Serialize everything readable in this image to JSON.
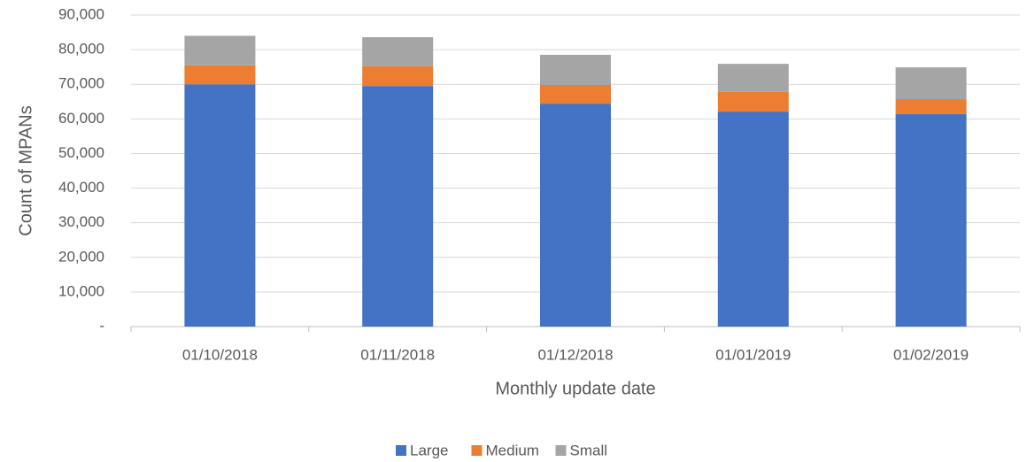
{
  "chart_data": {
    "type": "stacked_bar",
    "x_label": "Monthly update date",
    "y_label": "Count of MPANs",
    "categories": [
      "01/10/2018",
      "01/11/2018",
      "01/12/2018",
      "01/01/2019",
      "01/02/2019"
    ],
    "series": [
      {
        "name": "Large",
        "color": "#4472c4",
        "values": [
          70000,
          69500,
          64400,
          62100,
          61400
        ]
      },
      {
        "name": "Medium",
        "color": "#ed7d31",
        "values": [
          5500,
          5700,
          5400,
          5700,
          4300
        ]
      },
      {
        "name": "Small",
        "color": "#a5a5a5",
        "values": [
          8500,
          8400,
          8700,
          8100,
          9200
        ]
      }
    ],
    "ylim": [
      0,
      90000
    ],
    "yticks": [
      {
        "value": 0,
        "label": "-"
      },
      {
        "value": 10000,
        "label": "10,000"
      },
      {
        "value": 20000,
        "label": "20,000"
      },
      {
        "value": 30000,
        "label": "30,000"
      },
      {
        "value": 40000,
        "label": "40,000"
      },
      {
        "value": 50000,
        "label": "50,000"
      },
      {
        "value": 60000,
        "label": "60,000"
      },
      {
        "value": 70000,
        "label": "70,000"
      },
      {
        "value": 80000,
        "label": "80,000"
      },
      {
        "value": 90000,
        "label": "90,000"
      }
    ],
    "grid": true,
    "legend": "bottom"
  }
}
